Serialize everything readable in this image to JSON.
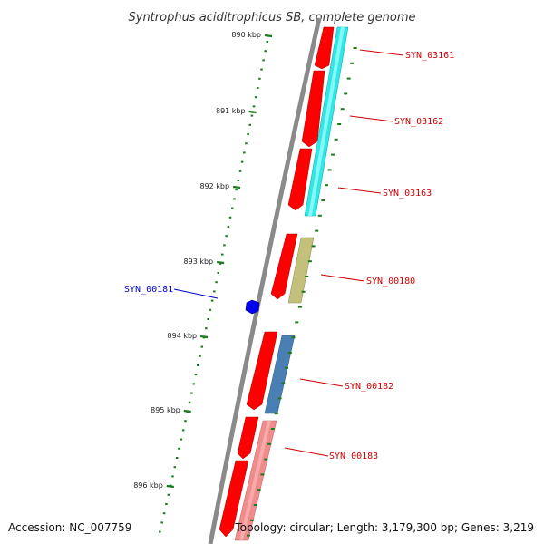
{
  "title": "Syntrophus aciditrophicus SB, complete genome",
  "accession": "Accession: NC_007759",
  "topology": "Topology: circular; Length: 3,179,300 bp; Genes: 3,219",
  "ticks": [
    {
      "kbp": 890,
      "label": "890 kbp"
    },
    {
      "kbp": 891,
      "label": "891 kbp"
    },
    {
      "kbp": 892,
      "label": "892 kbp"
    },
    {
      "kbp": 893,
      "label": "893 kbp"
    },
    {
      "kbp": 894,
      "label": "894 kbp"
    },
    {
      "kbp": 895,
      "label": "895 kbp"
    },
    {
      "kbp": 896,
      "label": "896 kbp"
    }
  ],
  "gene_labels": [
    {
      "id": "SYN_03161",
      "color": "#cc0000"
    },
    {
      "id": "SYN_03162",
      "color": "#cc0000"
    },
    {
      "id": "SYN_03163",
      "color": "#cc0000"
    },
    {
      "id": "SYN_00180",
      "color": "#cc0000"
    },
    {
      "id": "SYN_00181",
      "color": "#0000cc"
    },
    {
      "id": "SYN_00182",
      "color": "#cc0000"
    },
    {
      "id": "SYN_00183",
      "color": "#cc0000"
    }
  ],
  "colors": {
    "backbone": "#8a8a8a",
    "gene": "#ff0000",
    "tick": "#1a7a1a",
    "cyan": "#33e6e6",
    "olive": "#c2c07a",
    "steel_blue": "#4a7fb3",
    "pink": "#f08c8c",
    "blue_marker": "#0000ee"
  }
}
